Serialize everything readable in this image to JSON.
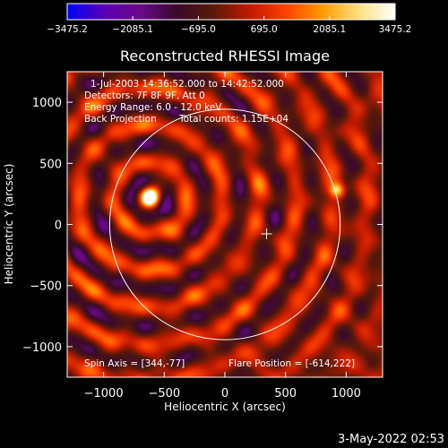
{
  "chart_data": {
    "type": "heatmap",
    "title": "Reconstructed RHESSI Image",
    "xlabel": "Heliocentric X (arcsec)",
    "ylabel": "Heliocentric Y (arcsec)",
    "xlim": [
      -1300,
      1300
    ],
    "ylim": [
      -1250,
      1250
    ],
    "x_ticks": [
      -1000,
      -500,
      0,
      500,
      1000
    ],
    "x_tick_labels": [
      "−1000",
      "−500",
      "0",
      "500",
      "1000"
    ],
    "y_ticks": [
      1000,
      500,
      0,
      -500,
      -1000
    ],
    "y_tick_labels": [
      "1000",
      "500",
      "0",
      "−500",
      "−1000"
    ],
    "colorbar": {
      "range": [
        -3475.2,
        3475.2
      ],
      "ticks": [
        -3475.2,
        -2085.1,
        -695.0,
        695.0,
        2085.1,
        3475.2
      ],
      "tick_labels": [
        "−3475.2",
        "−2085.1",
        "−695.0",
        "695.0",
        "2085.1",
        "3475.2"
      ],
      "colormap": [
        "#0000ff",
        "#5a00b4",
        "#6a0a8a",
        "#3a0a2a",
        "#5a1a0a",
        "#c01a00",
        "#ff4000",
        "#ff9a00",
        "#ffe080",
        "#ffffff"
      ]
    },
    "annotations": [
      "1-Jul-2003 14:36:52.000 to 14:42:52.000",
      "Detectors: 7F 8F 9F, Att 0",
      "Energy Range: 6.0 - 12.0 keV",
      "Back Projection",
      "Total counts: 1.15E+04"
    ],
    "spin_axis_text": "Spin Axis = [344,-77]",
    "flare_position_text": "Flare Position = [-614,222]",
    "spin_axis": [
      344,
      -77
    ],
    "solar_disk": {
      "center": [
        0,
        0
      ],
      "radius": 950
    },
    "sources": [
      {
        "x": -614,
        "y": 222,
        "value": 3475.2
      },
      {
        "x": 930,
        "y": 280,
        "value": 2700
      }
    ],
    "ring_pattern": {
      "center": [
        -614,
        222
      ],
      "spacing_arcsec": 300
    }
  },
  "footer": {
    "date": "3-May-2022 02:53"
  }
}
